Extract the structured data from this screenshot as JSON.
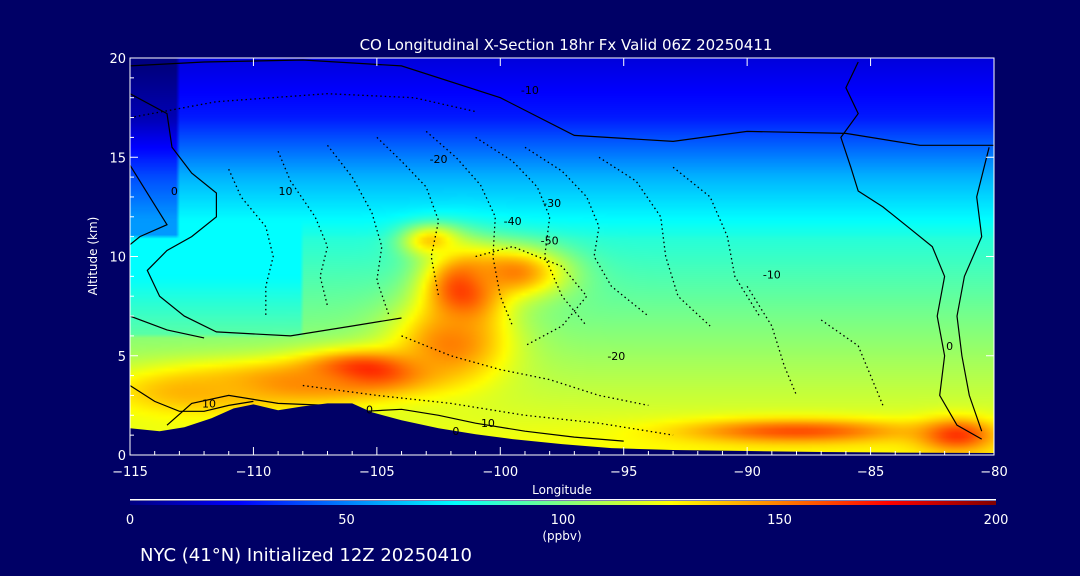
{
  "colors": {
    "background": "#000066",
    "terrain": "#000066",
    "contour_line": "#000000",
    "text": "#ffffff"
  },
  "chart_data": {
    "type": "heatmap",
    "title": "CO Longitudinal X-Section 18hr  Fx Valid 06Z 20250411",
    "subtitle": "NYC (41°N) Initialized 12Z 20250410",
    "xlabel": "Longitude",
    "ylabel": "Altitude (km)",
    "xlim": [
      -115,
      -80
    ],
    "ylim": [
      0,
      20
    ],
    "x_ticks": [
      -115,
      -110,
      -105,
      -100,
      -95,
      -90,
      -85,
      -80
    ],
    "x_tick_labels": [
      "−115",
      "−110",
      "−105",
      "−100",
      "−95",
      "−90",
      "−85",
      "−80"
    ],
    "y_ticks": [
      0,
      5,
      10,
      15,
      20
    ],
    "y_tick_labels": [
      "0",
      "5",
      "10",
      "15",
      "20"
    ],
    "colorbar": {
      "min": 0,
      "max": 200,
      "ticks": [
        0,
        50,
        100,
        150,
        200
      ],
      "tick_labels": [
        "0",
        "50",
        "100",
        "150",
        "200"
      ],
      "unit": "(ppbv)",
      "colormap": [
        "#000080",
        "#0000ff",
        "#0080ff",
        "#00ffff",
        "#80ff80",
        "#ffff00",
        "#ff8000",
        "#ff0000",
        "#800000"
      ]
    },
    "field_blobs": [
      {
        "lon": -105.5,
        "alt": 4.2,
        "value": 180,
        "sx": 2.6,
        "sy": 1.0
      },
      {
        "lon": -108.5,
        "alt": 3.6,
        "value": 150,
        "sx": 4.0,
        "sy": 1.1
      },
      {
        "lon": -112.5,
        "alt": 3.2,
        "value": 140,
        "sx": 3.5,
        "sy": 1.2
      },
      {
        "lon": -101.5,
        "alt": 8.3,
        "value": 170,
        "sx": 1.6,
        "sy": 2.0
      },
      {
        "lon": -102.0,
        "alt": 5.6,
        "value": 150,
        "sx": 2.4,
        "sy": 2.0
      },
      {
        "lon": -99.5,
        "alt": 9.2,
        "value": 150,
        "sx": 2.2,
        "sy": 1.3
      },
      {
        "lon": -102.8,
        "alt": 10.8,
        "value": 135,
        "sx": 1.2,
        "sy": 0.8
      },
      {
        "lon": -88.0,
        "alt": 1.2,
        "value": 160,
        "sx": 4.5,
        "sy": 0.6
      },
      {
        "lon": -81.5,
        "alt": 1.0,
        "value": 165,
        "sx": 1.5,
        "sy": 0.8
      }
    ],
    "contours": [
      {
        "style": "solid",
        "points": [
          [
            -115,
            19.6
          ],
          [
            -112,
            19.8
          ],
          [
            -108,
            19.9
          ],
          [
            -104,
            19.6
          ],
          [
            -100,
            18.0
          ],
          [
            -97,
            16.1
          ],
          [
            -93,
            15.8
          ],
          [
            -90,
            16.3
          ],
          [
            -86,
            16.2
          ],
          [
            -83,
            15.6
          ],
          [
            -80,
            15.6
          ]
        ]
      },
      {
        "style": "solid",
        "points": [
          [
            -115,
            18.2
          ],
          [
            -113.5,
            17.2
          ],
          [
            -113.3,
            15.5
          ],
          [
            -112.5,
            14.2
          ],
          [
            -111.5,
            13.2
          ],
          [
            -111.5,
            12.0
          ],
          [
            -112.5,
            11.0
          ],
          [
            -113.5,
            10.3
          ],
          [
            -114.3,
            9.3
          ],
          [
            -113.8,
            8.0
          ],
          [
            -112.8,
            7.0
          ],
          [
            -111.5,
            6.2
          ],
          [
            -108.5,
            6.0
          ],
          [
            -106,
            6.5
          ],
          [
            -104,
            6.9
          ]
        ]
      },
      {
        "style": "solid",
        "points": [
          [
            -115,
            14.6
          ],
          [
            -114.2,
            13.0
          ],
          [
            -113.5,
            11.6
          ],
          [
            -114.6,
            11.0
          ],
          [
            -115,
            10.6
          ]
        ]
      },
      {
        "style": "solid",
        "points": [
          [
            -115,
            7.0
          ],
          [
            -113.5,
            6.3
          ],
          [
            -112,
            5.9
          ]
        ]
      },
      {
        "style": "solid",
        "points": [
          [
            -115,
            3.5
          ],
          [
            -114,
            2.7
          ],
          [
            -113,
            2.2
          ],
          [
            -112,
            2.2
          ],
          [
            -111,
            2.5
          ],
          [
            -110,
            2.7
          ]
        ]
      },
      {
        "style": "solid",
        "points": [
          [
            -113.5,
            1.5
          ],
          [
            -112.5,
            2.6
          ],
          [
            -111,
            3.0
          ],
          [
            -109,
            2.6
          ],
          [
            -107,
            2.5
          ],
          [
            -105.5,
            2.2
          ],
          [
            -104,
            2.3
          ],
          [
            -102.5,
            2.0
          ],
          [
            -101,
            1.6
          ],
          [
            -99,
            1.2
          ],
          [
            -97,
            0.9
          ],
          [
            -95,
            0.7
          ]
        ]
      },
      {
        "style": "solid",
        "points": [
          [
            -85.5,
            19.8
          ],
          [
            -86,
            18.5
          ],
          [
            -85.5,
            17.2
          ],
          [
            -86.2,
            16.0
          ],
          [
            -85.8,
            14.5
          ],
          [
            -85.5,
            13.3
          ],
          [
            -84.5,
            12.5
          ],
          [
            -83.5,
            11.5
          ],
          [
            -82.5,
            10.5
          ],
          [
            -82.0,
            9.0
          ],
          [
            -82.3,
            7.0
          ],
          [
            -82.0,
            5.0
          ],
          [
            -82.2,
            3.0
          ],
          [
            -81.5,
            1.5
          ],
          [
            -80.5,
            0.8
          ]
        ]
      },
      {
        "style": "solid",
        "points": [
          [
            -80.2,
            15.5
          ],
          [
            -80.7,
            13.0
          ],
          [
            -80.5,
            11.0
          ],
          [
            -81.2,
            9.0
          ],
          [
            -81.5,
            7.0
          ],
          [
            -81.3,
            5.0
          ],
          [
            -81.0,
            3.0
          ],
          [
            -80.5,
            1.2
          ]
        ]
      },
      {
        "style": "dotted",
        "points": [
          [
            -111,
            14.4
          ],
          [
            -110.5,
            13.0
          ],
          [
            -109.5,
            11.5
          ],
          [
            -109.2,
            10.0
          ],
          [
            -109.5,
            8.5
          ],
          [
            -109.5,
            7.0
          ]
        ]
      },
      {
        "style": "dotted",
        "points": [
          [
            -109,
            15.3
          ],
          [
            -108.5,
            13.8
          ],
          [
            -107.5,
            12.0
          ],
          [
            -107.0,
            10.5
          ],
          [
            -107.3,
            9.0
          ],
          [
            -107,
            7.5
          ]
        ]
      },
      {
        "style": "dotted",
        "points": [
          [
            -107,
            15.6
          ],
          [
            -106,
            14.0
          ],
          [
            -105.2,
            12.2
          ],
          [
            -104.8,
            10.5
          ],
          [
            -105,
            8.8
          ],
          [
            -104.5,
            7.0
          ]
        ]
      },
      {
        "style": "dotted",
        "points": [
          [
            -105,
            16.0
          ],
          [
            -104,
            14.8
          ],
          [
            -103,
            13.5
          ],
          [
            -102.5,
            11.8
          ],
          [
            -102.8,
            10.0
          ],
          [
            -102.5,
            8.0
          ]
        ]
      },
      {
        "style": "dotted",
        "points": [
          [
            -103,
            16.3
          ],
          [
            -101.8,
            15.0
          ],
          [
            -100.8,
            13.6
          ],
          [
            -100.2,
            12.0
          ],
          [
            -100.3,
            10.0
          ],
          [
            -100.0,
            8.0
          ],
          [
            -99.5,
            6.5
          ]
        ]
      },
      {
        "style": "dotted",
        "points": [
          [
            -101,
            16.0
          ],
          [
            -99.5,
            14.8
          ],
          [
            -98.5,
            13.5
          ],
          [
            -98.0,
            12.0
          ],
          [
            -98.2,
            10.0
          ],
          [
            -97.5,
            8.0
          ],
          [
            -96.5,
            6.5
          ]
        ]
      },
      {
        "style": "dotted",
        "points": [
          [
            -99,
            15.5
          ],
          [
            -97.5,
            14.3
          ],
          [
            -96.5,
            13.0
          ],
          [
            -96.0,
            11.5
          ],
          [
            -96.2,
            10.0
          ],
          [
            -95.5,
            8.5
          ],
          [
            -94,
            7.0
          ]
        ]
      },
      {
        "style": "dotted",
        "points": [
          [
            -96,
            15.0
          ],
          [
            -94.5,
            13.8
          ],
          [
            -93.5,
            12.0
          ],
          [
            -93.3,
            10.0
          ],
          [
            -92.8,
            8.0
          ],
          [
            -91.5,
            6.5
          ]
        ]
      },
      {
        "style": "dotted",
        "points": [
          [
            -93,
            14.5
          ],
          [
            -91.5,
            13.0
          ],
          [
            -90.8,
            11.0
          ],
          [
            -90.5,
            9.0
          ],
          [
            -89.5,
            7.0
          ]
        ]
      },
      {
        "style": "dotted",
        "points": [
          [
            -101,
            10.0
          ],
          [
            -99.5,
            10.5
          ],
          [
            -97.5,
            9.5
          ],
          [
            -96.5,
            8.0
          ],
          [
            -97.5,
            6.5
          ],
          [
            -99,
            5.5
          ]
        ]
      },
      {
        "style": "dotted",
        "points": [
          [
            -104,
            6.0
          ],
          [
            -102,
            5.0
          ],
          [
            -100,
            4.3
          ],
          [
            -98,
            3.8
          ],
          [
            -96,
            3.0
          ],
          [
            -94,
            2.5
          ]
        ]
      },
      {
        "style": "dotted",
        "points": [
          [
            -108,
            3.5
          ],
          [
            -105,
            3.0
          ],
          [
            -102,
            2.6
          ],
          [
            -99,
            2.0
          ],
          [
            -96,
            1.6
          ],
          [
            -93,
            1.0
          ]
        ]
      },
      {
        "style": "dotted",
        "points": [
          [
            -90,
            8.5
          ],
          [
            -89,
            6.5
          ],
          [
            -88.5,
            4.5
          ],
          [
            -88.0,
            3.0
          ]
        ]
      },
      {
        "style": "dotted",
        "points": [
          [
            -87,
            6.8
          ],
          [
            -85.5,
            5.5
          ],
          [
            -85,
            4.0
          ],
          [
            -84.5,
            2.5
          ]
        ]
      },
      {
        "style": "dotted",
        "points": [
          [
            -115,
            17.0
          ],
          [
            -111.5,
            17.8
          ],
          [
            -107,
            18.2
          ],
          [
            -103.5,
            18.0
          ],
          [
            -101,
            17.3
          ]
        ]
      }
    ],
    "contour_labels": [
      {
        "text": "-10",
        "lon": -98.8,
        "alt": 18.4
      },
      {
        "text": "-20",
        "lon": -102.5,
        "alt": 14.9
      },
      {
        "text": "10",
        "lon": -108.7,
        "alt": 13.3
      },
      {
        "text": "0",
        "lon": -113.2,
        "alt": 13.3
      },
      {
        "text": "-30",
        "lon": -97.9,
        "alt": 12.7
      },
      {
        "text": "-40",
        "lon": -99.5,
        "alt": 11.8
      },
      {
        "text": "-50",
        "lon": -98.0,
        "alt": 10.8
      },
      {
        "text": "-10",
        "lon": -89.0,
        "alt": 9.1
      },
      {
        "text": "-20",
        "lon": -95.3,
        "alt": 5.0
      },
      {
        "text": "0",
        "lon": -81.8,
        "alt": 5.5
      },
      {
        "text": "10",
        "lon": -111.8,
        "alt": 2.6
      },
      {
        "text": "0",
        "lon": -105.3,
        "alt": 2.3
      },
      {
        "text": "10",
        "lon": -100.5,
        "alt": 1.6
      },
      {
        "text": "0",
        "lon": -101.8,
        "alt": 1.2
      }
    ],
    "terrain": [
      [
        -115,
        1.35
      ],
      [
        -113.8,
        1.2
      ],
      [
        -112.8,
        1.4
      ],
      [
        -111.7,
        1.85
      ],
      [
        -110.8,
        2.35
      ],
      [
        -110.0,
        2.55
      ],
      [
        -109.0,
        2.25
      ],
      [
        -108.0,
        2.45
      ],
      [
        -107.0,
        2.6
      ],
      [
        -106.0,
        2.6
      ],
      [
        -105.2,
        2.15
      ],
      [
        -104.0,
        1.75
      ],
      [
        -102.5,
        1.35
      ],
      [
        -101.0,
        1.05
      ],
      [
        -99.5,
        0.8
      ],
      [
        -97.5,
        0.55
      ],
      [
        -95.5,
        0.35
      ],
      [
        -93,
        0.25
      ],
      [
        -90,
        0.2
      ],
      [
        -87,
        0.15
      ],
      [
        -84,
        0.12
      ],
      [
        -80,
        0.1
      ]
    ]
  }
}
